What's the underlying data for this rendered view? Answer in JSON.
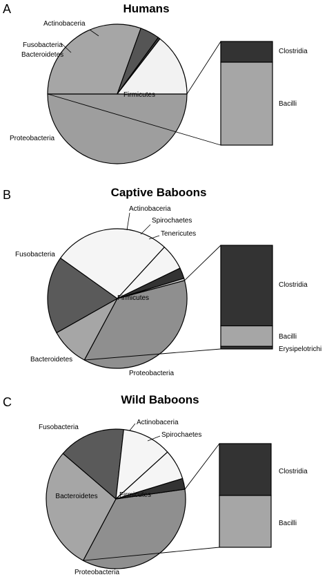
{
  "chart_data": [
    {
      "type": "pie",
      "letter": "A",
      "title": "Humans",
      "slices": [
        {
          "name": "Firmicutes",
          "value": 50.0,
          "color": "#9e9e9e"
        },
        {
          "name": "Proteobacteria",
          "value": 30.5,
          "color": "#a6a6a6"
        },
        {
          "name": "Bacteroidetes",
          "value": 4.5,
          "color": "#555555"
        },
        {
          "name": "Fusobacteria",
          "value": 0.5,
          "color": "#3a3a3a"
        },
        {
          "name": "Actinobaceria",
          "value": 14.5,
          "color": "#f2f2f2"
        }
      ],
      "breakdown": {
        "of": "Firmicutes",
        "parts": [
          {
            "name": "Clostridia",
            "value": 20,
            "color": "#333333"
          },
          {
            "name": "Bacilli",
            "value": 80,
            "color": "#a6a6a6"
          }
        ]
      }
    },
    {
      "type": "pie",
      "letter": "B",
      "title": "Captive Baboons",
      "slices": [
        {
          "name": "Firmicutes",
          "value": 37.0,
          "color": "#8f8f8f"
        },
        {
          "name": "Proteobacteria",
          "value": 9.0,
          "color": "#a6a6a6"
        },
        {
          "name": "Bacteroidetes",
          "value": 18.0,
          "color": "#5a5a5a"
        },
        {
          "name": "Fusobacteria",
          "value": 27.0,
          "color": "#f5f5f5"
        },
        {
          "name": "Actinobaceria",
          "value": 6.0,
          "color": "#f5f5f5"
        },
        {
          "name": "Spirochaetes",
          "value": 2.5,
          "color": "#333333"
        },
        {
          "name": "Tenericutes",
          "value": 0.5,
          "color": "#d0d0d0"
        }
      ],
      "breakdown": {
        "of": "Firmicutes",
        "parts": [
          {
            "name": "Clostridia",
            "value": 77.7,
            "color": "#333333"
          },
          {
            "name": "Bacilli",
            "value": 19.8,
            "color": "#a6a6a6"
          },
          {
            "name": "Erysipelotrichi",
            "value": 2.5,
            "color": "#333333"
          }
        ]
      }
    },
    {
      "type": "pie",
      "letter": "C",
      "title": "Wild Baboons",
      "slices": [
        {
          "name": "Firmicutes",
          "value": 35.0,
          "color": "#8f8f8f"
        },
        {
          "name": "Proteobacteria",
          "value": 28.5,
          "color": "#a6a6a6"
        },
        {
          "name": "Bacteroidetes",
          "value": 15.5,
          "color": "#5a5a5a"
        },
        {
          "name": "Fusobacteria",
          "value": 11.5,
          "color": "#f5f5f5"
        },
        {
          "name": "Actinobaceria",
          "value": 7.0,
          "color": "#f5f5f5"
        },
        {
          "name": "Spirochaetes",
          "value": 2.5,
          "color": "#333333"
        }
      ],
      "breakdown": {
        "of": "Firmicutes",
        "parts": [
          {
            "name": "Clostridia",
            "value": 50,
            "color": "#333333"
          },
          {
            "name": "Bacilli",
            "value": 50,
            "color": "#a6a6a6"
          }
        ]
      }
    }
  ]
}
